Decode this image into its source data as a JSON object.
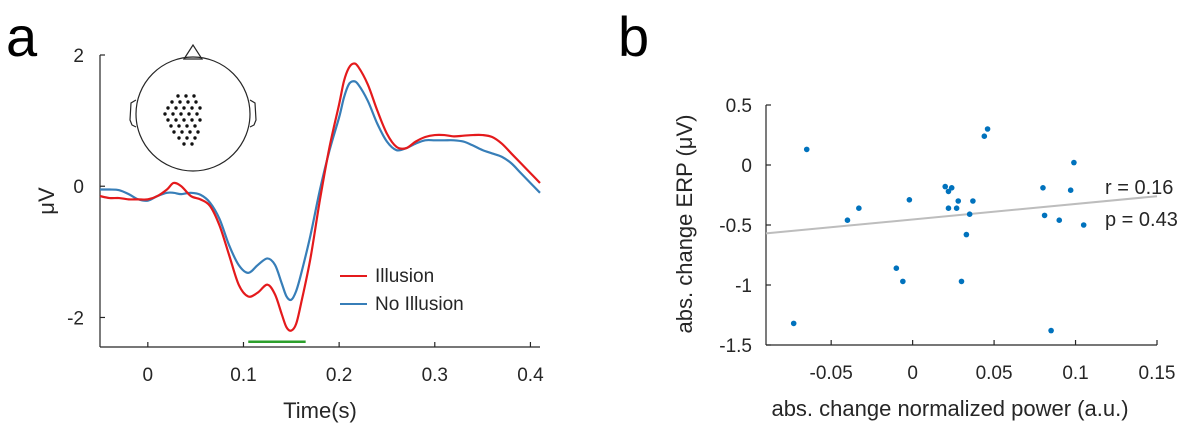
{
  "chart_data": [
    {
      "type": "line",
      "panel_label": "a",
      "xlabel": "Time(s)",
      "ylabel": "μV",
      "xlim": [
        -0.05,
        0.41
      ],
      "ylim": [
        -2.45,
        2.0
      ],
      "xticks": [
        "0",
        "0.1",
        "0.2",
        "0.3",
        "0.4"
      ],
      "yticks": [
        "-2",
        "0",
        "2"
      ],
      "grid": false,
      "legend_position": "bottom-right",
      "significance_bar": {
        "x_start": 0.105,
        "x_end": 0.165,
        "y": -2.37,
        "color": "#2ca02c"
      },
      "inset": "scalp map with electrode cluster",
      "series": [
        {
          "name": "Illusion",
          "color": "#e41a1c",
          "x": [
            -0.05,
            -0.04,
            -0.03,
            -0.02,
            -0.01,
            0.0,
            0.01,
            0.02,
            0.027,
            0.035,
            0.045,
            0.055,
            0.065,
            0.075,
            0.085,
            0.095,
            0.105,
            0.115,
            0.125,
            0.133,
            0.14,
            0.145,
            0.15,
            0.155,
            0.16,
            0.17,
            0.18,
            0.19,
            0.2,
            0.205,
            0.21,
            0.215,
            0.22,
            0.23,
            0.24,
            0.25,
            0.26,
            0.27,
            0.28,
            0.29,
            0.3,
            0.31,
            0.32,
            0.33,
            0.34,
            0.35,
            0.36,
            0.37,
            0.38,
            0.39,
            0.4,
            0.41
          ],
          "y": [
            -0.15,
            -0.18,
            -0.18,
            -0.2,
            -0.2,
            -0.2,
            -0.15,
            -0.05,
            0.05,
            0.0,
            -0.15,
            -0.2,
            -0.3,
            -0.6,
            -1.05,
            -1.5,
            -1.68,
            -1.62,
            -1.5,
            -1.65,
            -1.95,
            -2.15,
            -2.2,
            -2.1,
            -1.8,
            -1.1,
            -0.2,
            0.6,
            1.25,
            1.6,
            1.8,
            1.87,
            1.82,
            1.55,
            1.15,
            0.8,
            0.6,
            0.58,
            0.68,
            0.75,
            0.78,
            0.78,
            0.76,
            0.77,
            0.78,
            0.78,
            0.75,
            0.65,
            0.5,
            0.35,
            0.2,
            0.05
          ]
        },
        {
          "name": "No Illusion",
          "color": "#377eb8",
          "x": [
            -0.05,
            -0.04,
            -0.03,
            -0.02,
            -0.01,
            0.0,
            0.01,
            0.02,
            0.027,
            0.035,
            0.045,
            0.055,
            0.065,
            0.075,
            0.085,
            0.095,
            0.105,
            0.115,
            0.125,
            0.133,
            0.14,
            0.145,
            0.15,
            0.155,
            0.16,
            0.17,
            0.18,
            0.19,
            0.2,
            0.205,
            0.21,
            0.215,
            0.22,
            0.23,
            0.24,
            0.25,
            0.26,
            0.27,
            0.28,
            0.29,
            0.3,
            0.31,
            0.32,
            0.33,
            0.34,
            0.35,
            0.36,
            0.37,
            0.38,
            0.39,
            0.4,
            0.41
          ],
          "y": [
            -0.05,
            -0.05,
            -0.06,
            -0.12,
            -0.2,
            -0.22,
            -0.15,
            -0.1,
            -0.1,
            -0.12,
            -0.1,
            -0.13,
            -0.25,
            -0.5,
            -0.9,
            -1.2,
            -1.32,
            -1.2,
            -1.1,
            -1.2,
            -1.48,
            -1.68,
            -1.73,
            -1.6,
            -1.35,
            -0.75,
            -0.05,
            0.55,
            1.05,
            1.35,
            1.55,
            1.6,
            1.55,
            1.3,
            0.95,
            0.68,
            0.55,
            0.58,
            0.65,
            0.7,
            0.7,
            0.7,
            0.7,
            0.68,
            0.62,
            0.55,
            0.5,
            0.45,
            0.35,
            0.2,
            0.05,
            -0.1
          ]
        }
      ]
    },
    {
      "type": "scatter",
      "panel_label": "b",
      "xlabel": "abs. change normalized power (a.u.)",
      "ylabel": "abs. change ERP (μV)",
      "xlim": [
        -0.09,
        0.15
      ],
      "ylim": [
        -1.5,
        0.5
      ],
      "xticks": [
        "-0.05",
        "0",
        "0.05",
        "0.1",
        "0.15"
      ],
      "yticks": [
        "0.5",
        "0",
        "-0.5",
        "-1",
        "-1.5"
      ],
      "grid": false,
      "annotations": [
        "r = 0.16",
        "p = 0.43"
      ],
      "point_color": "#0072bd",
      "fit_line": {
        "x": [
          -0.09,
          0.15
        ],
        "y": [
          -0.57,
          -0.26
        ],
        "color": "#bdbdbd"
      },
      "points": [
        {
          "x": -0.065,
          "y": 0.13
        },
        {
          "x": -0.073,
          "y": -1.32
        },
        {
          "x": -0.04,
          "y": -0.46
        },
        {
          "x": -0.033,
          "y": -0.36
        },
        {
          "x": -0.01,
          "y": -0.86
        },
        {
          "x": -0.006,
          "y": -0.97
        },
        {
          "x": -0.002,
          "y": -0.29
        },
        {
          "x": 0.02,
          "y": -0.18
        },
        {
          "x": 0.022,
          "y": -0.22
        },
        {
          "x": 0.024,
          "y": -0.19
        },
        {
          "x": 0.022,
          "y": -0.36
        },
        {
          "x": 0.027,
          "y": -0.36
        },
        {
          "x": 0.028,
          "y": -0.3
        },
        {
          "x": 0.03,
          "y": -0.97
        },
        {
          "x": 0.033,
          "y": -0.58
        },
        {
          "x": 0.035,
          "y": -0.41
        },
        {
          "x": 0.037,
          "y": -0.3
        },
        {
          "x": 0.044,
          "y": 0.24
        },
        {
          "x": 0.046,
          "y": 0.3
        },
        {
          "x": 0.08,
          "y": -0.19
        },
        {
          "x": 0.081,
          "y": -0.42
        },
        {
          "x": 0.085,
          "y": -1.38
        },
        {
          "x": 0.09,
          "y": -0.46
        },
        {
          "x": 0.097,
          "y": -0.21
        },
        {
          "x": 0.099,
          "y": 0.02
        },
        {
          "x": 0.105,
          "y": -0.5
        }
      ]
    }
  ]
}
